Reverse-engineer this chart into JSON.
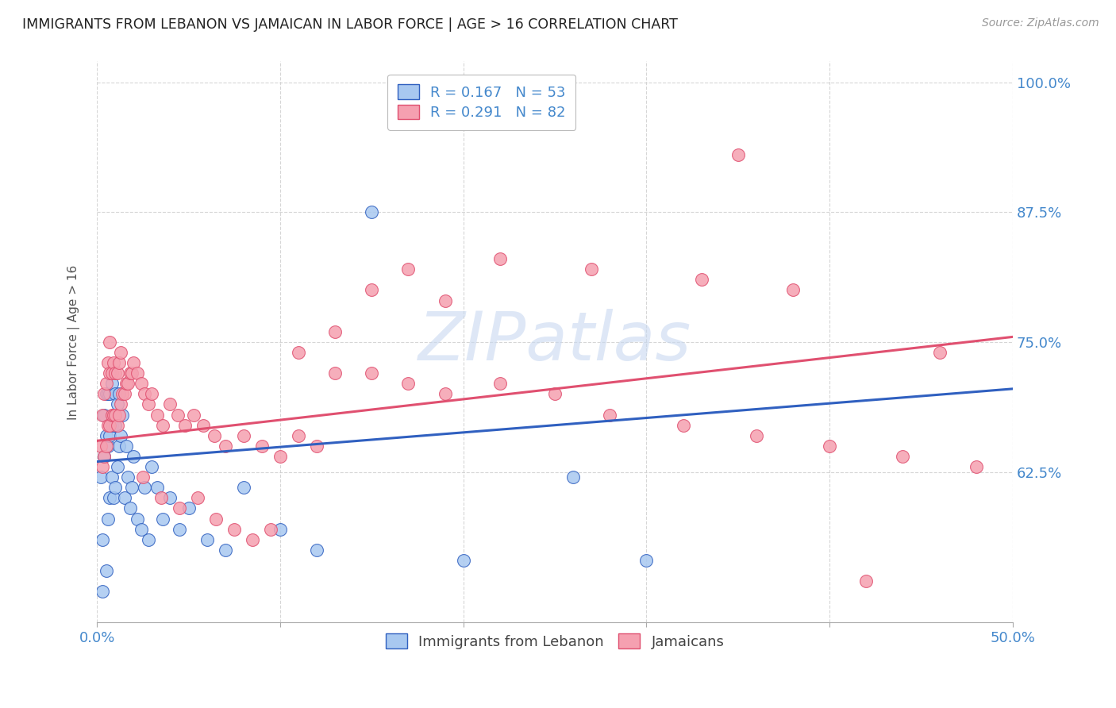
{
  "title": "IMMIGRANTS FROM LEBANON VS JAMAICAN IN LABOR FORCE | AGE > 16 CORRELATION CHART",
  "source": "Source: ZipAtlas.com",
  "ylabel": "In Labor Force | Age > 16",
  "xlim": [
    0.0,
    0.5
  ],
  "ylim": [
    0.48,
    1.02
  ],
  "xticks": [
    0.0,
    0.1,
    0.2,
    0.3,
    0.4,
    0.5
  ],
  "xticklabels": [
    "0.0%",
    "",
    "",
    "",
    "",
    "50.0%"
  ],
  "yticks": [
    0.625,
    0.75,
    0.875,
    1.0
  ],
  "yticklabels": [
    "62.5%",
    "75.0%",
    "87.5%",
    "100.0%"
  ],
  "legend1_label": "R = 0.167   N = 53",
  "legend2_label": "R = 0.291   N = 82",
  "color_lebanon": "#a8c8f0",
  "color_jamaica": "#f5a0b0",
  "color_lebanon_line": "#3060c0",
  "color_jamaica_line": "#e05070",
  "watermark": "ZIPatlas",
  "watermark_color": "#c8d8f0",
  "leb_trend": [
    0.0,
    0.5,
    0.635,
    0.705
  ],
  "jam_trend": [
    0.0,
    0.5,
    0.655,
    0.755
  ],
  "lebanon_x": [
    0.002,
    0.003,
    0.003,
    0.004,
    0.004,
    0.005,
    0.005,
    0.005,
    0.006,
    0.006,
    0.006,
    0.007,
    0.007,
    0.007,
    0.008,
    0.008,
    0.008,
    0.009,
    0.009,
    0.01,
    0.01,
    0.01,
    0.011,
    0.011,
    0.012,
    0.012,
    0.013,
    0.014,
    0.015,
    0.016,
    0.017,
    0.018,
    0.019,
    0.02,
    0.022,
    0.024,
    0.026,
    0.028,
    0.03,
    0.033,
    0.036,
    0.04,
    0.045,
    0.05,
    0.06,
    0.07,
    0.08,
    0.1,
    0.12,
    0.15,
    0.2,
    0.26,
    0.3
  ],
  "lebanon_y": [
    0.62,
    0.51,
    0.56,
    0.64,
    0.68,
    0.53,
    0.66,
    0.7,
    0.58,
    0.65,
    0.7,
    0.6,
    0.66,
    0.7,
    0.62,
    0.67,
    0.71,
    0.6,
    0.68,
    0.61,
    0.67,
    0.7,
    0.63,
    0.69,
    0.65,
    0.7,
    0.66,
    0.68,
    0.6,
    0.65,
    0.62,
    0.59,
    0.61,
    0.64,
    0.58,
    0.57,
    0.61,
    0.56,
    0.63,
    0.61,
    0.58,
    0.6,
    0.57,
    0.59,
    0.56,
    0.55,
    0.61,
    0.57,
    0.55,
    0.875,
    0.54,
    0.62,
    0.54
  ],
  "jamaica_x": [
    0.002,
    0.003,
    0.003,
    0.004,
    0.004,
    0.005,
    0.005,
    0.006,
    0.006,
    0.007,
    0.007,
    0.007,
    0.008,
    0.008,
    0.009,
    0.009,
    0.01,
    0.01,
    0.011,
    0.011,
    0.012,
    0.012,
    0.013,
    0.013,
    0.014,
    0.015,
    0.016,
    0.017,
    0.018,
    0.019,
    0.02,
    0.022,
    0.024,
    0.026,
    0.028,
    0.03,
    0.033,
    0.036,
    0.04,
    0.044,
    0.048,
    0.053,
    0.058,
    0.064,
    0.07,
    0.08,
    0.09,
    0.1,
    0.11,
    0.12,
    0.13,
    0.15,
    0.17,
    0.19,
    0.22,
    0.25,
    0.28,
    0.32,
    0.36,
    0.4,
    0.44,
    0.48,
    0.025,
    0.035,
    0.045,
    0.055,
    0.065,
    0.075,
    0.085,
    0.095,
    0.11,
    0.13,
    0.15,
    0.17,
    0.19,
    0.22,
    0.27,
    0.33,
    0.38,
    0.46,
    0.35,
    0.42
  ],
  "jamaica_y": [
    0.65,
    0.63,
    0.68,
    0.64,
    0.7,
    0.65,
    0.71,
    0.67,
    0.73,
    0.67,
    0.72,
    0.75,
    0.68,
    0.72,
    0.68,
    0.73,
    0.68,
    0.72,
    0.67,
    0.72,
    0.68,
    0.73,
    0.69,
    0.74,
    0.7,
    0.7,
    0.71,
    0.71,
    0.72,
    0.72,
    0.73,
    0.72,
    0.71,
    0.7,
    0.69,
    0.7,
    0.68,
    0.67,
    0.69,
    0.68,
    0.67,
    0.68,
    0.67,
    0.66,
    0.65,
    0.66,
    0.65,
    0.64,
    0.66,
    0.65,
    0.72,
    0.72,
    0.71,
    0.7,
    0.71,
    0.7,
    0.68,
    0.67,
    0.66,
    0.65,
    0.64,
    0.63,
    0.62,
    0.6,
    0.59,
    0.6,
    0.58,
    0.57,
    0.56,
    0.57,
    0.74,
    0.76,
    0.8,
    0.82,
    0.79,
    0.83,
    0.82,
    0.81,
    0.8,
    0.74,
    0.93,
    0.52
  ]
}
